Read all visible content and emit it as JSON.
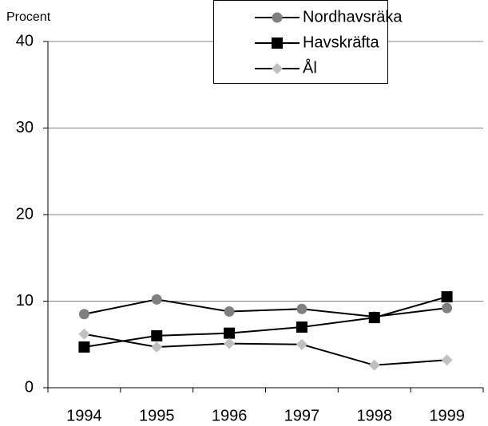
{
  "chart_data": {
    "type": "line",
    "ylabel": "Procent",
    "categories": [
      "1994",
      "1995",
      "1996",
      "1997",
      "1998",
      "1999"
    ],
    "series": [
      {
        "name": "Nordhavsräka",
        "color": "#808080",
        "marker": "circle",
        "values": [
          8.5,
          10.2,
          8.8,
          9.1,
          8.2,
          9.2
        ]
      },
      {
        "name": "Havskräfta",
        "color": "#000000",
        "marker": "square",
        "values": [
          4.7,
          6.0,
          6.3,
          7.0,
          8.1,
          10.5
        ]
      },
      {
        "name": "Ål",
        "color": "#c0c0c0",
        "marker": "diamond",
        "values": [
          6.2,
          4.7,
          5.1,
          5.0,
          2.6,
          3.2
        ]
      }
    ],
    "line_color": "#000000",
    "ylim": [
      0,
      40
    ],
    "yticks": [
      0,
      10,
      20,
      30,
      40
    ],
    "grid": true,
    "legend": "top-right"
  }
}
